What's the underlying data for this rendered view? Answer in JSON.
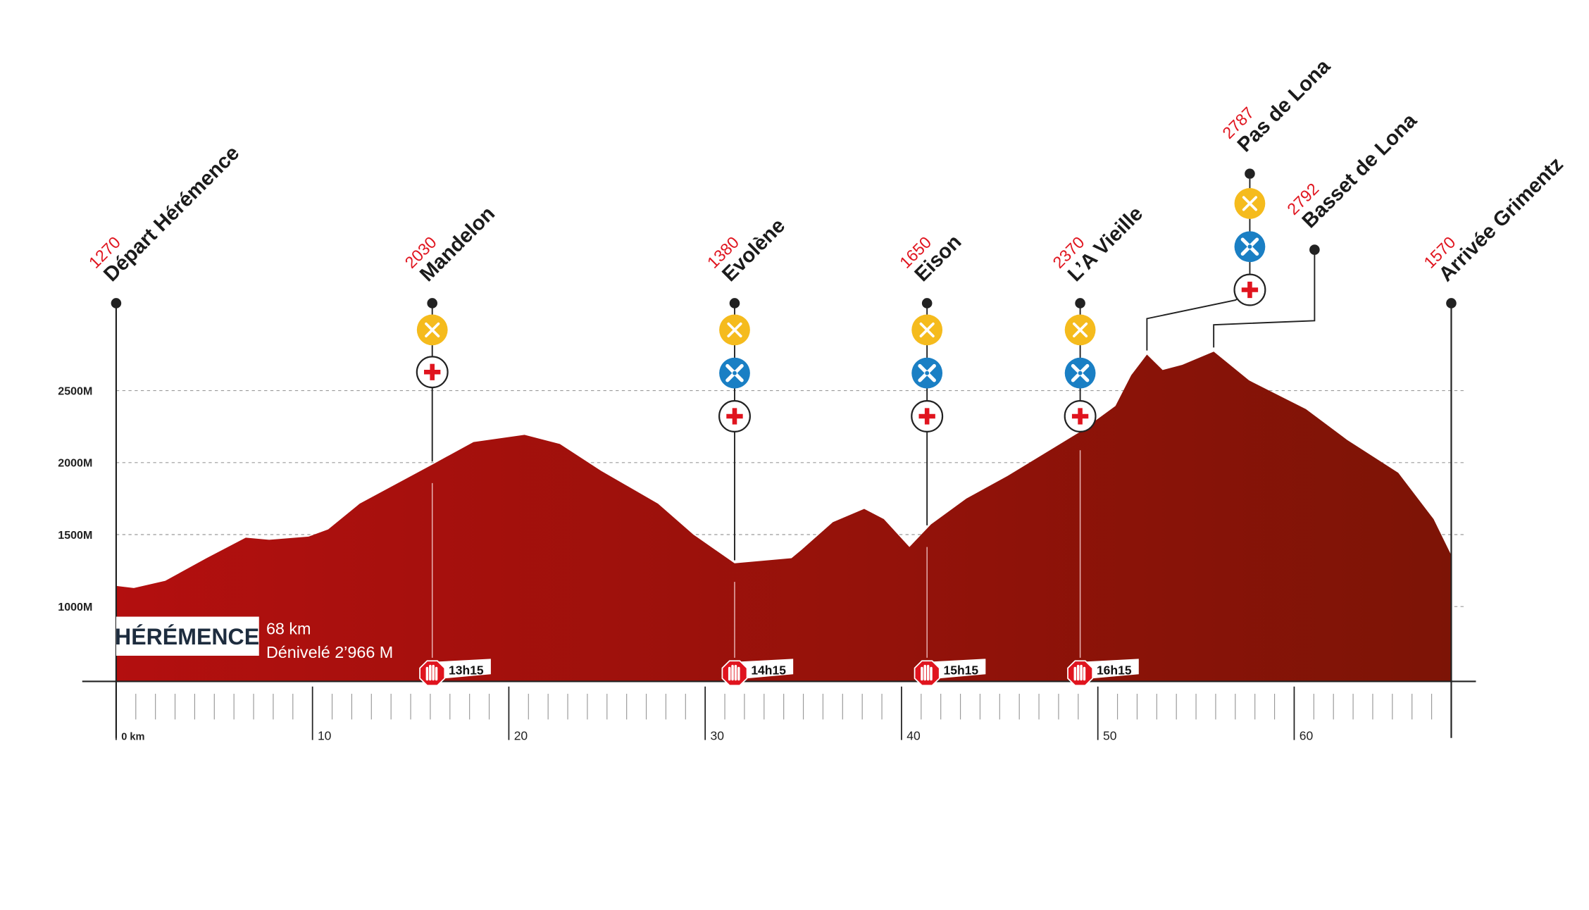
{
  "chart_data": {
    "type": "area",
    "x": [
      0,
      0.9,
      2.5,
      4.6,
      6.6,
      7.8,
      9.8,
      10.8,
      12.4,
      16.1,
      18.2,
      20.8,
      22.6,
      24.7,
      27.6,
      29.4,
      31.5,
      34.4,
      34.9,
      36.5,
      38.1,
      39.1,
      40.4,
      41.5,
      43.3,
      45.4,
      49.1,
      50.9,
      51.7,
      52.5,
      53.3,
      54.3,
      55.9,
      57.7,
      60.6,
      62.7,
      65.3,
      67.1,
      68
    ],
    "values": [
      1143,
      1129,
      1179,
      1336,
      1479,
      1464,
      1486,
      1536,
      1714,
      1986,
      2143,
      2193,
      2129,
      1943,
      1714,
      1500,
      1300,
      1336,
      1393,
      1586,
      1679,
      1607,
      1414,
      1571,
      1750,
      1907,
      2214,
      2393,
      2607,
      2750,
      2643,
      2679,
      2771,
      2571,
      2371,
      2157,
      1929,
      1607,
      1357
    ],
    "colors": [
      "#b30f0f",
      "#7d1406"
    ],
    "xlim": [
      0,
      68
    ],
    "ylim": [
      480,
      3200
    ],
    "xticks": [
      {
        "value": 0,
        "label": "0 km"
      },
      10,
      20,
      30,
      40,
      50,
      60
    ],
    "yticks": [
      {
        "value": 1000,
        "label": "1000M"
      },
      {
        "value": 1500,
        "label": "1500M"
      },
      {
        "value": 2000,
        "label": "2000M"
      },
      {
        "value": 2500,
        "label": "2500M"
      }
    ],
    "grid": true,
    "waypoints": [
      {
        "name": "Départ Hérémence",
        "altitude": 1270,
        "km": 0
      },
      {
        "name": "Mandelon",
        "altitude": 2030,
        "km": 16.1,
        "cutoff": "13h15"
      },
      {
        "name": "Evolène",
        "altitude": 1380,
        "km": 31.5,
        "cutoff": "14h15"
      },
      {
        "name": "Eison",
        "altitude": 1650,
        "km": 41.3,
        "cutoff": "15h15"
      },
      {
        "name": "L’A Vieille",
        "altitude": 2370,
        "km": 49.1,
        "cutoff": "16h15"
      },
      {
        "name": "Pas de Lona",
        "altitude": 2787,
        "km": 52.5
      },
      {
        "name": "Basset de Lona",
        "altitude": 2792,
        "km": 55.9
      },
      {
        "name": "Arrivée Grimentz",
        "altitude": 1570,
        "km": 68
      }
    ],
    "info": {
      "title": "HÉRÉMENCE",
      "distance": "68 km",
      "elevation": "Dénivelé 2’966 M"
    }
  }
}
